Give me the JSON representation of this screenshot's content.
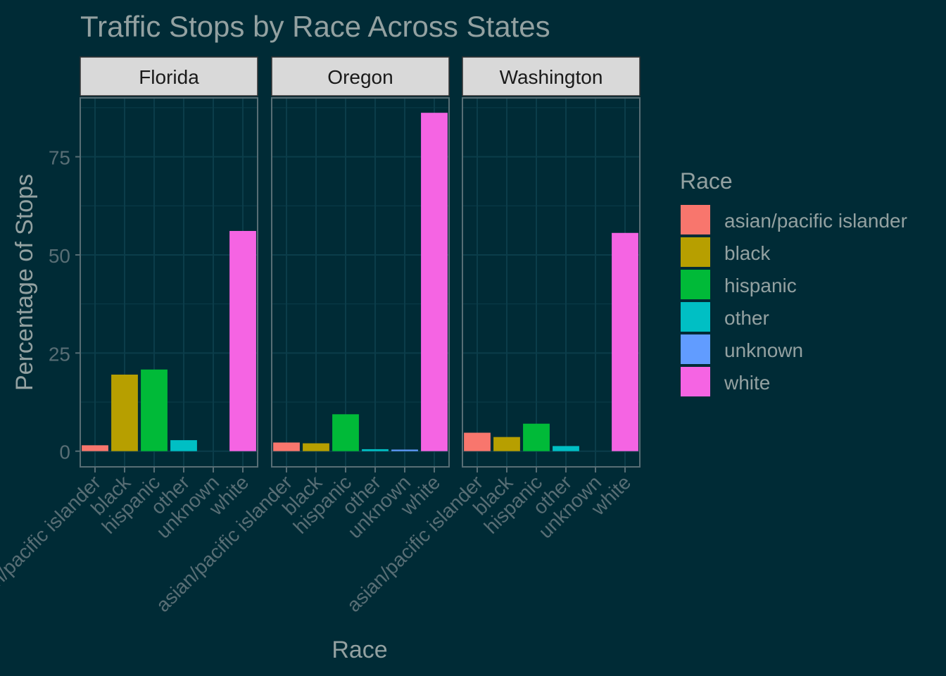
{
  "chart_data": {
    "type": "bar",
    "title": "Traffic Stops by Race Across States",
    "xlabel": "Race",
    "ylabel": "Percentage of Stops",
    "ylim": [
      -4,
      90
    ],
    "yticks": [
      0,
      25,
      50,
      75
    ],
    "grid": true,
    "legend": {
      "title": "Race",
      "position": "right"
    },
    "categories": [
      "asian/pacific islander",
      "black",
      "hispanic",
      "other",
      "unknown",
      "white"
    ],
    "colors": {
      "asian/pacific islander": "#f8766d",
      "black": "#b79f00",
      "hispanic": "#00ba38",
      "other": "#00bfc4",
      "unknown": "#619cff",
      "white": "#f564e3"
    },
    "facets": [
      {
        "name": "Florida",
        "values": [
          1.5,
          19.5,
          20.8,
          2.8,
          0,
          56.1
        ]
      },
      {
        "name": "Oregon",
        "values": [
          2.2,
          2.0,
          9.4,
          0.5,
          0.4,
          86.2
        ]
      },
      {
        "name": "Washington",
        "values": [
          4.7,
          3.6,
          7.0,
          1.3,
          0,
          55.6
        ]
      }
    ],
    "theme": {
      "background": "#002b36",
      "text": "#93a1a1",
      "axis_text": "#586e75",
      "strip_fill": "#d9d9d9",
      "strip_text": "#1a1a1a",
      "grid": "#0b3d4a",
      "border": "#586e75"
    }
  }
}
